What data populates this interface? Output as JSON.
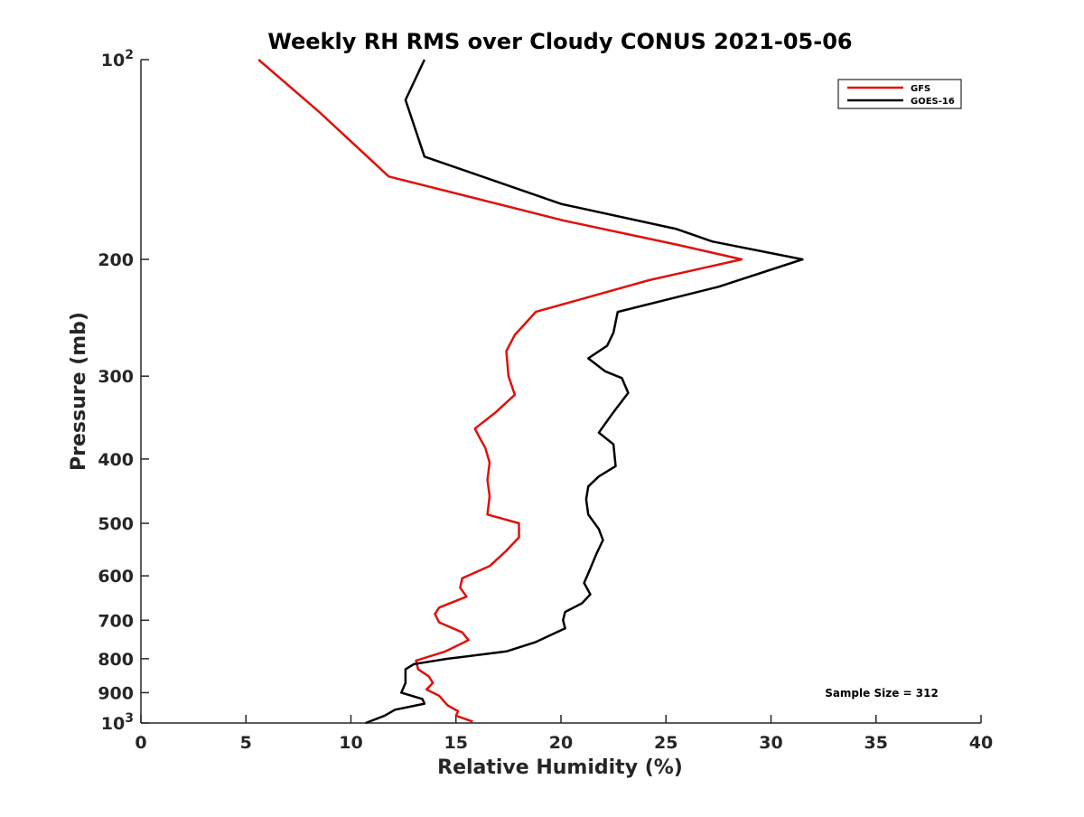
{
  "chart_data": {
    "type": "line",
    "title": "Weekly RH RMS over Cloudy CONUS 2021-05-06",
    "xlabel": "Relative Humidity (%)",
    "ylabel": "Pressure (mb)",
    "xlim": [
      0,
      40
    ],
    "ylim": [
      100,
      1000
    ],
    "y_scale": "log",
    "y_reversed": true,
    "grid": false,
    "legend_position": "top-right",
    "annotation": "Sample Size = 312",
    "x_ticks": [
      0,
      5,
      10,
      15,
      20,
      25,
      30,
      35,
      40
    ],
    "x_tick_labels": [
      "0",
      "5",
      "10",
      "15",
      "20",
      "25",
      "30",
      "35",
      "40"
    ],
    "y_ticks": [
      100,
      200,
      300,
      400,
      500,
      600,
      700,
      800,
      900,
      1000
    ],
    "y_tick_labels": [
      "10^2",
      "200",
      "300",
      "400",
      "500",
      "600",
      "700",
      "800",
      "900",
      "10^3"
    ],
    "series": [
      {
        "name": "GFS",
        "color": "#e0100a",
        "points": [
          [
            5.6,
            100
          ],
          [
            8.5,
            120
          ],
          [
            11.8,
            150
          ],
          [
            20.2,
            175
          ],
          [
            25.5,
            190
          ],
          [
            28.6,
            200
          ],
          [
            24.2,
            215
          ],
          [
            18.8,
            240
          ],
          [
            17.8,
            260
          ],
          [
            17.4,
            275
          ],
          [
            17.5,
            300
          ],
          [
            17.8,
            320
          ],
          [
            16.9,
            340
          ],
          [
            15.9,
            360
          ],
          [
            16.1,
            370
          ],
          [
            16.4,
            385
          ],
          [
            16.6,
            405
          ],
          [
            16.5,
            430
          ],
          [
            16.6,
            455
          ],
          [
            16.5,
            485
          ],
          [
            18.0,
            500
          ],
          [
            18.0,
            525
          ],
          [
            17.4,
            550
          ],
          [
            16.6,
            580
          ],
          [
            15.3,
            605
          ],
          [
            15.2,
            625
          ],
          [
            15.5,
            645
          ],
          [
            14.2,
            670
          ],
          [
            14.0,
            685
          ],
          [
            14.2,
            705
          ],
          [
            15.3,
            730
          ],
          [
            15.6,
            750
          ],
          [
            14.5,
            780
          ],
          [
            13.1,
            805
          ],
          [
            13.2,
            830
          ],
          [
            13.7,
            850
          ],
          [
            13.9,
            870
          ],
          [
            13.6,
            890
          ],
          [
            14.2,
            910
          ],
          [
            14.6,
            940
          ],
          [
            15.1,
            960
          ],
          [
            15.0,
            975
          ],
          [
            15.8,
            995
          ]
        ]
      },
      {
        "name": "GOES-16",
        "color": "#000000",
        "points": [
          [
            13.5,
            100
          ],
          [
            12.6,
            115
          ],
          [
            13.5,
            140
          ],
          [
            20.0,
            165
          ],
          [
            25.5,
            180
          ],
          [
            27.2,
            188
          ],
          [
            31.5,
            200
          ],
          [
            27.5,
            220
          ],
          [
            22.7,
            240
          ],
          [
            22.5,
            258
          ],
          [
            22.2,
            270
          ],
          [
            21.3,
            282
          ],
          [
            22.1,
            295
          ],
          [
            22.9,
            302
          ],
          [
            23.2,
            318
          ],
          [
            22.5,
            340
          ],
          [
            21.8,
            365
          ],
          [
            22.5,
            380
          ],
          [
            22.6,
            410
          ],
          [
            21.8,
            425
          ],
          [
            21.3,
            440
          ],
          [
            21.2,
            460
          ],
          [
            21.3,
            485
          ],
          [
            21.8,
            510
          ],
          [
            22.0,
            530
          ],
          [
            21.7,
            555
          ],
          [
            21.3,
            595
          ],
          [
            21.1,
            615
          ],
          [
            21.4,
            640
          ],
          [
            21.0,
            660
          ],
          [
            20.2,
            680
          ],
          [
            20.1,
            700
          ],
          [
            20.2,
            720
          ],
          [
            18.8,
            755
          ],
          [
            17.4,
            780
          ],
          [
            14.6,
            800
          ],
          [
            13.0,
            815
          ],
          [
            12.6,
            830
          ],
          [
            12.6,
            870
          ],
          [
            12.4,
            900
          ],
          [
            13.4,
            920
          ],
          [
            13.5,
            935
          ],
          [
            12.1,
            955
          ],
          [
            11.6,
            975
          ],
          [
            10.7,
            1000
          ]
        ]
      }
    ]
  }
}
